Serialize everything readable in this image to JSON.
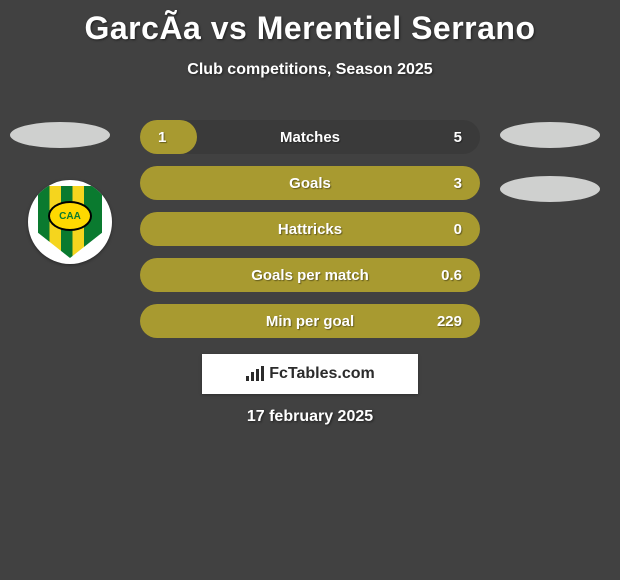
{
  "title": "GarcÃ­a vs Merentiel Serrano",
  "subtitle": "Club competitions, Season 2025",
  "background_color": "#414141",
  "bar_color_left": "#a89a30",
  "bar_color_right": "#3a3a3a",
  "bar_text_color": "#ffffff",
  "rows": [
    {
      "label": "Matches",
      "left": "1",
      "right": "5",
      "left_pct": 16.7
    },
    {
      "label": "Goals",
      "left": "",
      "right": "3",
      "left_pct": 100
    },
    {
      "label": "Hattricks",
      "left": "",
      "right": "0",
      "left_pct": 100
    },
    {
      "label": "Goals per match",
      "left": "",
      "right": "0.6",
      "left_pct": 100
    },
    {
      "label": "Min per goal",
      "left": "",
      "right": "229",
      "left_pct": 100
    }
  ],
  "brand_text": "FcTables.com",
  "date_text": "17 february 2025",
  "crest_label": "CAA"
}
